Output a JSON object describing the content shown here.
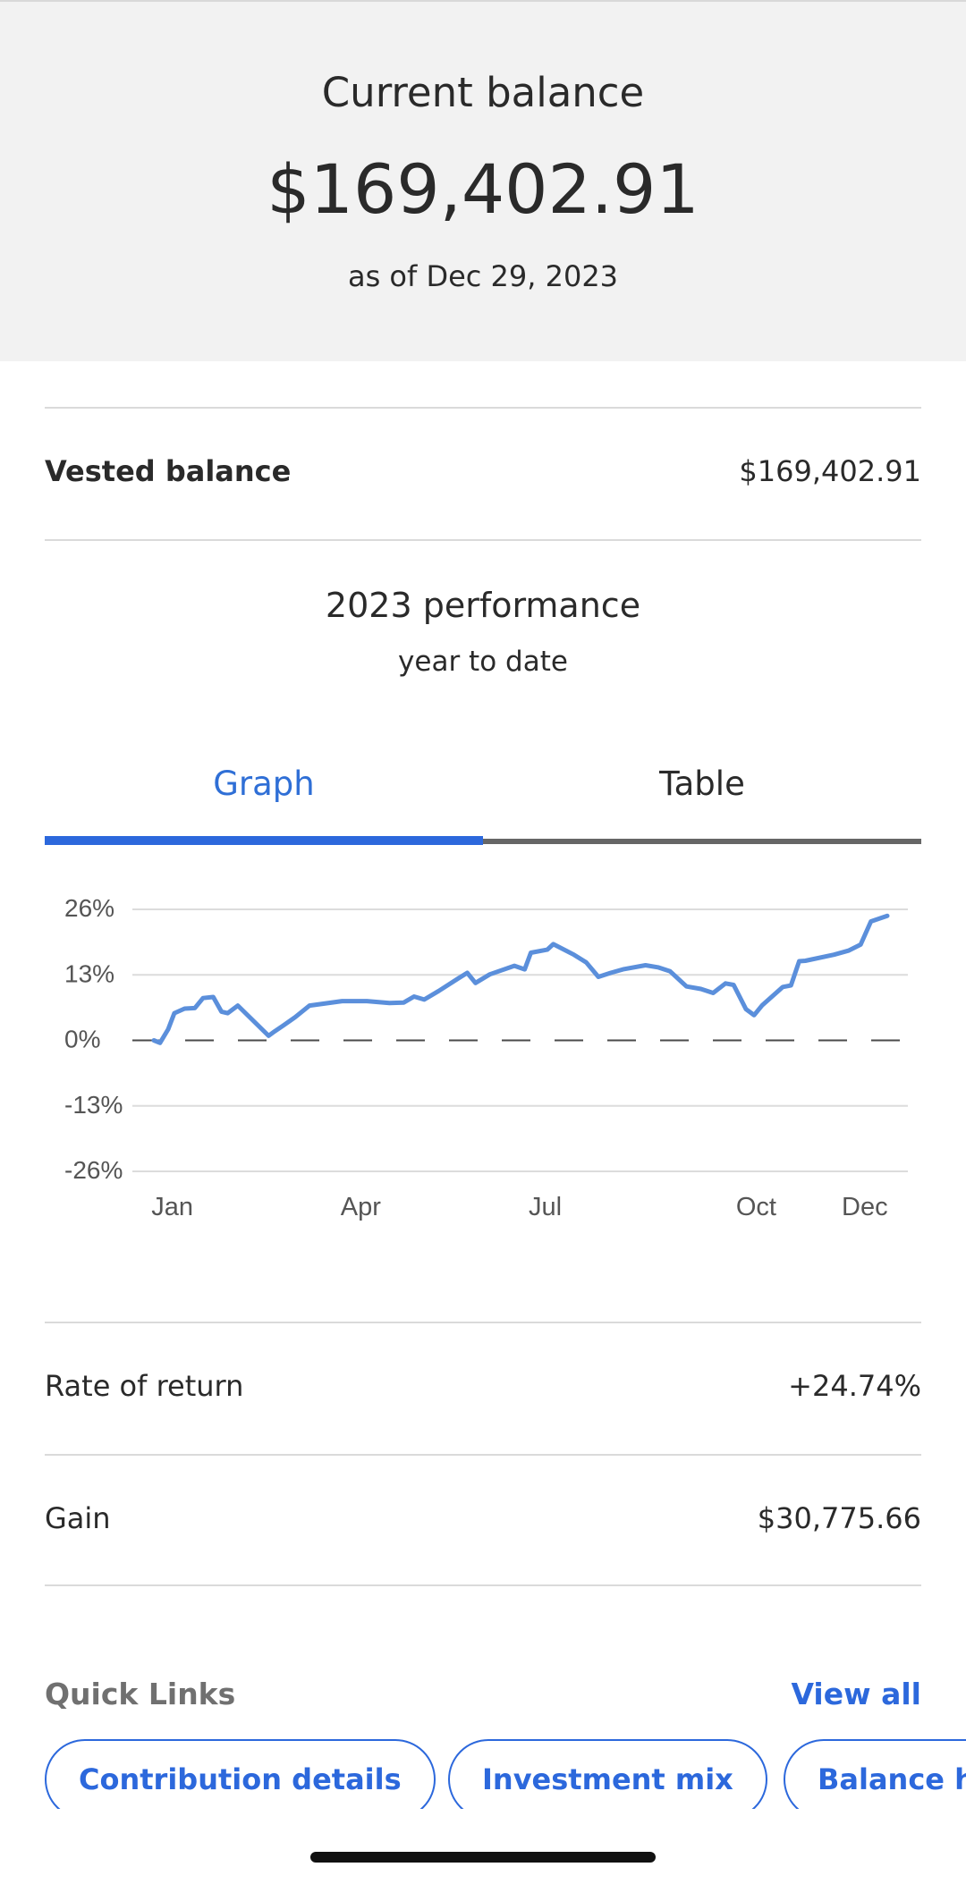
{
  "header": {
    "title": "Current balance",
    "amount": "$169,402.91",
    "as_of": "as of Dec 29, 2023"
  },
  "vested": {
    "label": "Vested balance",
    "value": "$169,402.91"
  },
  "performance": {
    "title": "2023 performance",
    "subtitle": "year to date"
  },
  "tabs": [
    {
      "label": "Graph",
      "active": true
    },
    {
      "label": "Table",
      "active": false
    }
  ],
  "chart_data": {
    "type": "line",
    "ylabel_ticks": [
      "26%",
      "13%",
      "0%",
      "-13%",
      "-26%"
    ],
    "ylim": [
      -26,
      26
    ],
    "x_ticks": [
      "Jan",
      "Apr",
      "Jul",
      "Oct",
      "Dec"
    ],
    "zero_line": "dashed",
    "grid": true,
    "series": [
      {
        "color": "#5b8fdb",
        "x": [
          "Jan 3",
          "Jan 6",
          "Jan 10",
          "Jan 13",
          "Jan 18",
          "Jan 23",
          "Jan 27",
          "Feb 1",
          "Feb 5",
          "Feb 8",
          "Feb 13",
          "Feb 28",
          "Mar 3",
          "Mar 7",
          "Mar 13",
          "Mar 20",
          "Apr 5",
          "Apr 10",
          "Apr 17",
          "Apr 28",
          "May 5",
          "May 10",
          "May 15",
          "May 22",
          "Jun 1",
          "Jun 5",
          "Jun 9",
          "Jun 16",
          "Jun 28",
          "Jul 3",
          "Jul 6",
          "Jul 14",
          "Jul 17",
          "Jul 27",
          "Aug 2",
          "Aug 8",
          "Aug 14",
          "Aug 20",
          "Aug 31",
          "Sep 6",
          "Sep 12",
          "Sep 20",
          "Sep 27",
          "Oct 3",
          "Oct 9",
          "Oct 13",
          "Oct 19",
          "Oct 23",
          "Oct 27",
          "Nov 6",
          "Nov 10",
          "Nov 14",
          "Nov 17",
          "Dec 1",
          "Dec 8",
          "Dec 14",
          "Dec 19",
          "Dec 27"
        ],
        "values": [
          0.0,
          -0.5,
          2.2,
          5.4,
          6.3,
          6.4,
          8.4,
          8.6,
          5.7,
          5.4,
          6.9,
          0.9,
          1.8,
          2.9,
          4.6,
          6.9,
          7.8,
          7.8,
          7.8,
          7.4,
          7.5,
          8.7,
          8.1,
          9.8,
          12.4,
          13.4,
          11.4,
          13.1,
          14.8,
          14.1,
          17.4,
          18.0,
          19.1,
          17.0,
          15.5,
          12.6,
          13.4,
          14.1,
          14.9,
          14.5,
          13.7,
          10.7,
          10.2,
          9.4,
          11.3,
          11.0,
          6.2,
          5.0,
          7.0,
          10.6,
          10.9,
          15.7,
          15.8,
          17.0,
          17.8,
          19.0,
          23.6,
          24.7
        ]
      }
    ]
  },
  "stats": [
    {
      "label": "Rate of return",
      "value": "+24.74%"
    },
    {
      "label": "Gain",
      "value": "$30,775.66"
    }
  ],
  "quick_links": {
    "title": "Quick Links",
    "view_all": "View all",
    "items": [
      "Contribution details",
      "Investment mix",
      "Balance h"
    ]
  }
}
